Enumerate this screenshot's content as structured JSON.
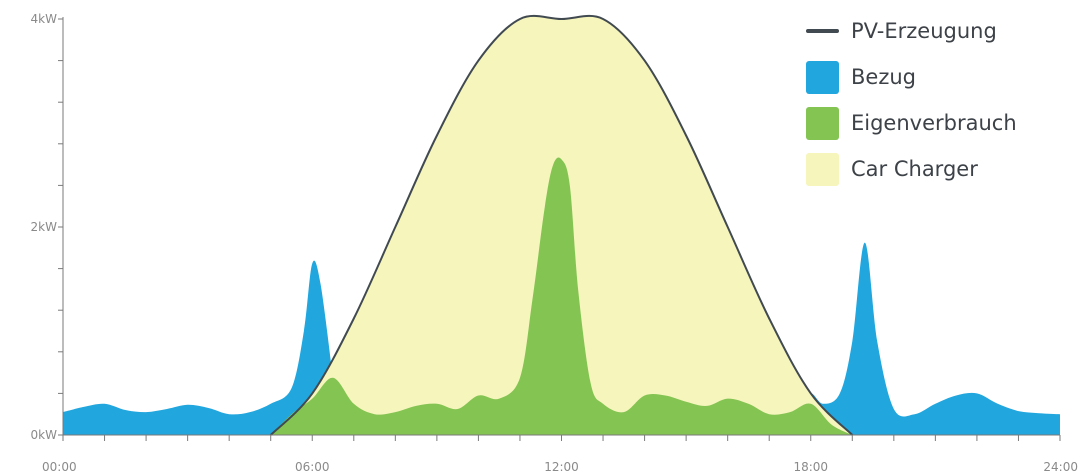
{
  "chart_data": {
    "type": "area",
    "x_ticks": [
      "00:00",
      "06:00",
      "12:00",
      "18:00",
      "24:00"
    ],
    "y_ticks": [
      "0kW",
      "2kW",
      "4kW"
    ],
    "ylim": [
      0,
      4
    ],
    "xlim": [
      0,
      24
    ],
    "legend_position": "top-right",
    "grid": false,
    "colors": {
      "pv": "#414a50",
      "bezug": "#21a6de",
      "eigen": "#84c453",
      "car": "#f6f5bc",
      "axis": "#7a7a7a"
    },
    "series": [
      {
        "key": "pv",
        "name": "PV-Erzeugung",
        "kind": "line",
        "x": [
          5.0,
          6.0,
          7.0,
          8.0,
          9.0,
          10.0,
          11.0,
          12.0,
          13.0,
          14.0,
          15.0,
          16.0,
          17.0,
          18.0,
          19.0
        ],
        "y": [
          0.0,
          0.4,
          1.12,
          2.0,
          2.88,
          3.6,
          4.0,
          4.0,
          4.0,
          3.6,
          2.88,
          2.0,
          1.12,
          0.4,
          0.0
        ]
      },
      {
        "key": "bezug",
        "name": "Bezug",
        "kind": "area",
        "x": [
          0.0,
          0.5,
          1.0,
          1.5,
          2.0,
          2.5,
          3.0,
          3.5,
          4.0,
          4.5,
          5.0,
          5.5,
          5.8,
          6.0,
          6.2,
          6.5,
          17.8,
          18.0,
          18.3,
          18.7,
          19.0,
          19.3,
          19.6,
          20.0,
          20.5,
          21.0,
          21.5,
          22.0,
          22.5,
          23.0,
          23.5,
          24.0
        ],
        "y": [
          0.22,
          0.27,
          0.3,
          0.24,
          0.22,
          0.25,
          0.29,
          0.26,
          0.2,
          0.22,
          0.3,
          0.45,
          1.0,
          1.65,
          1.45,
          0.55,
          0.25,
          0.4,
          0.3,
          0.4,
          0.9,
          1.85,
          0.9,
          0.25,
          0.2,
          0.3,
          0.38,
          0.4,
          0.3,
          0.23,
          0.21,
          0.2
        ]
      },
      {
        "key": "eigen",
        "name": "Eigenverbrauch",
        "kind": "area",
        "x": [
          5.0,
          5.5,
          6.0,
          6.5,
          7.0,
          7.5,
          8.0,
          8.5,
          9.0,
          9.5,
          10.0,
          10.5,
          11.0,
          11.3,
          11.6,
          11.8,
          12.0,
          12.2,
          12.4,
          12.7,
          13.0,
          13.5,
          14.0,
          14.5,
          15.0,
          15.5,
          16.0,
          16.5,
          17.0,
          17.5,
          18.0,
          18.5,
          19.0
        ],
        "y": [
          0.0,
          0.2,
          0.35,
          0.55,
          0.3,
          0.2,
          0.22,
          0.28,
          0.3,
          0.25,
          0.38,
          0.35,
          0.55,
          1.3,
          2.2,
          2.6,
          2.65,
          2.4,
          1.4,
          0.5,
          0.3,
          0.22,
          0.38,
          0.38,
          0.32,
          0.28,
          0.35,
          0.3,
          0.2,
          0.22,
          0.3,
          0.1,
          0.0
        ]
      },
      {
        "key": "car",
        "name": "Car Charger",
        "kind": "area",
        "x": [
          5.0,
          6.0,
          7.0,
          8.0,
          9.0,
          10.0,
          11.0,
          12.0,
          13.0,
          14.0,
          15.0,
          16.0,
          17.0,
          18.0,
          19.0
        ],
        "y": [
          0.0,
          0.4,
          1.12,
          2.0,
          2.88,
          3.6,
          4.0,
          4.0,
          4.0,
          3.6,
          2.88,
          2.0,
          1.12,
          0.4,
          0.0
        ]
      }
    ]
  }
}
